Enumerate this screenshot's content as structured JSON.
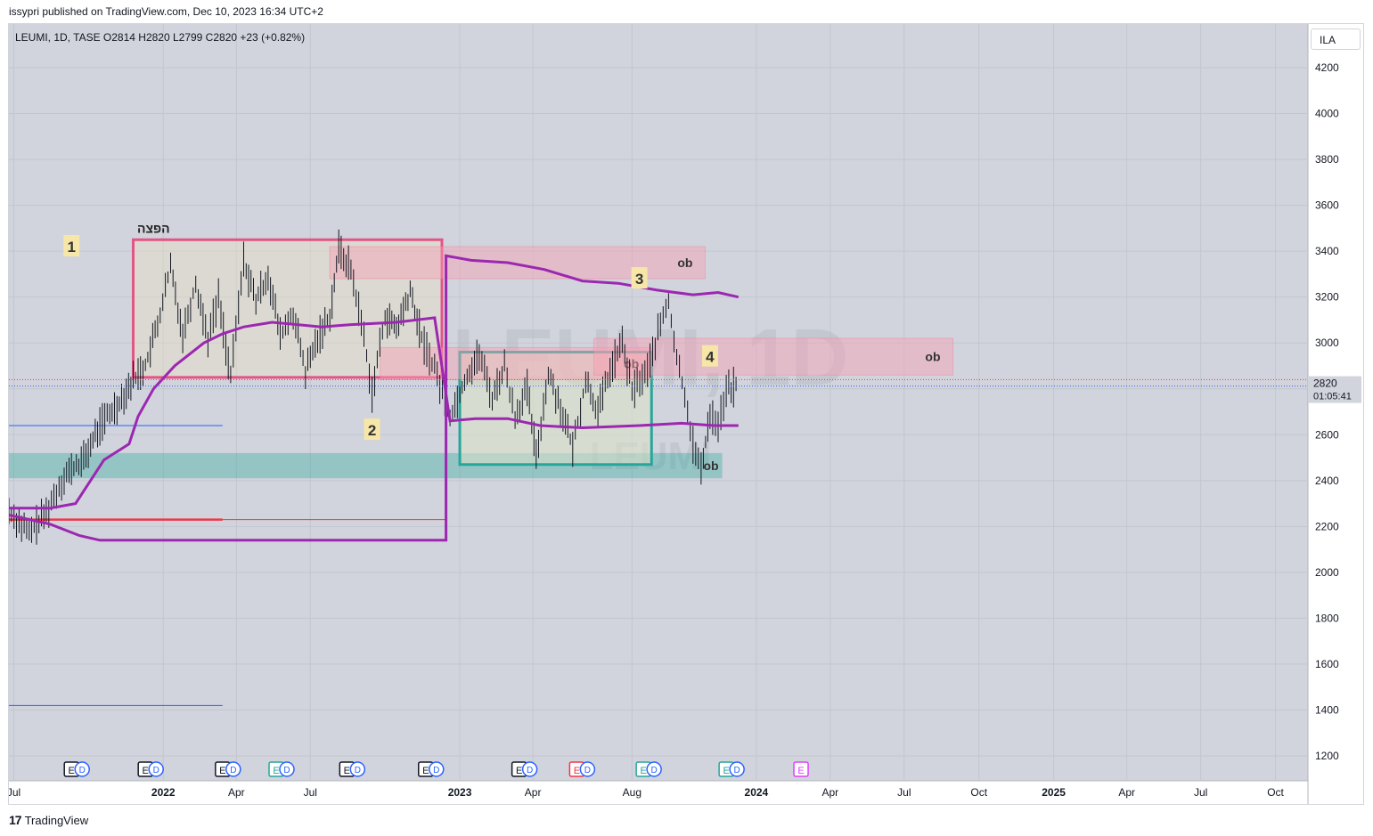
{
  "header": {
    "published": "issypri published on TradingView.com, Dec 10, 2023 16:34 UTC+2"
  },
  "legend": {
    "text": "LEUMI, 1D, TASE  O2814  H2820  L2799  C2820  +23 (+0.82%)"
  },
  "currency": "ILA",
  "watermark": {
    "symbol": "LEUMI, 1D",
    "sub": "LEUMI"
  },
  "price_label": {
    "value": "2820",
    "countdown": "01:05:41"
  },
  "footer": {
    "brand": "TradingView"
  },
  "colors": {
    "pink_box": "#e91e63",
    "ob_zone": "#f8b8c6",
    "teal": "#26a69a",
    "purple": "#9c27b0",
    "red": "#f23645",
    "blue": "#2962ff",
    "chart_bg": "#d1d4dc"
  },
  "chart_data": {
    "type": "line",
    "symbol": "LEUMI",
    "interval": "1D",
    "exchange": "TASE",
    "ohlc": {
      "open": 2814,
      "high": 2820,
      "low": 2799,
      "close": 2820,
      "change": 23,
      "change_pct": 0.82
    },
    "y_ticks": [
      1200,
      1400,
      1600,
      1800,
      2000,
      2200,
      2400,
      2600,
      2800,
      3000,
      3200,
      3400,
      3600,
      3800,
      4000,
      4200
    ],
    "ylim": [
      1100,
      4300
    ],
    "x_ticks": [
      {
        "t": "2021-07-01",
        "label": "Jul",
        "bold": false
      },
      {
        "t": "2022-01-01",
        "label": "2022",
        "bold": true
      },
      {
        "t": "2022-04-01",
        "label": "Apr",
        "bold": false
      },
      {
        "t": "2022-07-01",
        "label": "Jul",
        "bold": false
      },
      {
        "t": "2023-01-01",
        "label": "2023",
        "bold": true
      },
      {
        "t": "2023-04-01",
        "label": "Apr",
        "bold": false
      },
      {
        "t": "2023-08-01",
        "label": "Aug",
        "bold": false
      },
      {
        "t": "2024-01-01",
        "label": "2024",
        "bold": true
      },
      {
        "t": "2024-04-01",
        "label": "Apr",
        "bold": false
      },
      {
        "t": "2024-07-01",
        "label": "Jul",
        "bold": false
      },
      {
        "t": "2024-10-01",
        "label": "Oct",
        "bold": false
      },
      {
        "t": "2025-01-01",
        "label": "2025",
        "bold": true
      },
      {
        "t": "2025-04-01",
        "label": "Apr",
        "bold": false
      },
      {
        "t": "2025-07-01",
        "label": "Jul",
        "bold": false
      },
      {
        "t": "2025-10-01",
        "label": "Oct",
        "bold": false
      }
    ],
    "xlim": [
      "2021-06-25",
      "2025-11-10"
    ],
    "price_path": [
      [
        "2021-06-25",
        2270
      ],
      [
        "2021-07-20",
        2170
      ],
      [
        "2021-08-10",
        2260
      ],
      [
        "2021-09-01",
        2420
      ],
      [
        "2021-09-25",
        2490
      ],
      [
        "2021-10-15",
        2640
      ],
      [
        "2021-11-05",
        2730
      ],
      [
        "2021-11-25",
        2840
      ],
      [
        "2021-12-10",
        2900
      ],
      [
        "2021-12-25",
        3080
      ],
      [
        "2022-01-10",
        3330
      ],
      [
        "2022-01-25",
        3040
      ],
      [
        "2022-02-10",
        3260
      ],
      [
        "2022-02-25",
        3020
      ],
      [
        "2022-03-10",
        3200
      ],
      [
        "2022-03-25",
        2850
      ],
      [
        "2022-04-10",
        3360
      ],
      [
        "2022-04-25",
        3180
      ],
      [
        "2022-05-10",
        3300
      ],
      [
        "2022-05-25",
        3030
      ],
      [
        "2022-06-10",
        3130
      ],
      [
        "2022-06-25",
        2870
      ],
      [
        "2022-07-10",
        3020
      ],
      [
        "2022-07-25",
        3120
      ],
      [
        "2022-08-05",
        3410
      ],
      [
        "2022-08-20",
        3320
      ],
      [
        "2022-09-05",
        3030
      ],
      [
        "2022-09-15",
        2780
      ],
      [
        "2022-10-01",
        3120
      ],
      [
        "2022-10-15",
        3060
      ],
      [
        "2022-11-01",
        3220
      ],
      [
        "2022-11-15",
        3020
      ],
      [
        "2022-12-01",
        2890
      ],
      [
        "2022-12-20",
        2680
      ],
      [
        "2023-01-10",
        2860
      ],
      [
        "2023-01-25",
        2950
      ],
      [
        "2023-02-10",
        2760
      ],
      [
        "2023-02-25",
        2900
      ],
      [
        "2023-03-10",
        2680
      ],
      [
        "2023-03-25",
        2800
      ],
      [
        "2023-04-05",
        2500
      ],
      [
        "2023-04-20",
        2870
      ],
      [
        "2023-05-05",
        2720
      ],
      [
        "2023-05-20",
        2540
      ],
      [
        "2023-06-05",
        2840
      ],
      [
        "2023-06-20",
        2700
      ],
      [
        "2023-07-05",
        2880
      ],
      [
        "2023-07-20",
        3000
      ],
      [
        "2023-08-01",
        2790
      ],
      [
        "2023-08-20",
        2880
      ],
      [
        "2023-09-05",
        3080
      ],
      [
        "2023-09-15",
        3180
      ],
      [
        "2023-09-25",
        2930
      ],
      [
        "2023-10-05",
        2780
      ],
      [
        "2023-10-15",
        2560
      ],
      [
        "2023-10-25",
        2440
      ],
      [
        "2023-11-05",
        2700
      ],
      [
        "2023-11-15",
        2640
      ],
      [
        "2023-11-25",
        2790
      ],
      [
        "2023-12-10",
        2820
      ]
    ],
    "purple_line": [
      [
        "2021-06-25",
        2280
      ],
      [
        "2021-08-15",
        2280
      ],
      [
        "2021-09-15",
        2300
      ],
      [
        "2021-10-20",
        2490
      ],
      [
        "2021-11-20",
        2560
      ],
      [
        "2021-12-01",
        2680
      ],
      [
        "2021-12-20",
        2800
      ],
      [
        "2022-01-15",
        2900
      ],
      [
        "2022-02-20",
        3000
      ],
      [
        "2022-03-15",
        3040
      ],
      [
        "2022-04-10",
        3070
      ],
      [
        "2022-05-15",
        3090
      ],
      [
        "2022-06-15",
        3080
      ],
      [
        "2022-07-15",
        3070
      ],
      [
        "2022-08-20",
        3080
      ],
      [
        "2022-10-15",
        3090
      ],
      [
        "2022-12-01",
        3110
      ],
      [
        "2022-12-20",
        2660
      ],
      [
        "2023-01-20",
        2670
      ],
      [
        "2023-03-01",
        2670
      ],
      [
        "2023-04-10",
        2640
      ],
      [
        "2023-06-01",
        2630
      ],
      [
        "2023-08-10",
        2640
      ],
      [
        "2023-10-01",
        2650
      ],
      [
        "2023-11-10",
        2640
      ],
      [
        "2023-12-10",
        2640
      ]
    ],
    "purple_line_2": [
      [
        "2021-06-25",
        2250
      ],
      [
        "2021-08-15",
        2210
      ],
      [
        "2021-09-20",
        2160
      ],
      [
        "2021-10-15",
        2140
      ],
      [
        "2022-12-15",
        2140
      ],
      [
        "2022-12-15",
        3380
      ],
      [
        "2023-01-15",
        3360
      ],
      [
        "2023-03-01",
        3350
      ],
      [
        "2023-04-15",
        3320
      ],
      [
        "2023-06-01",
        3270
      ],
      [
        "2023-07-15",
        3260
      ],
      [
        "2023-09-01",
        3230
      ],
      [
        "2023-10-15",
        3210
      ],
      [
        "2023-11-15",
        3220
      ],
      [
        "2023-12-10",
        3200
      ]
    ],
    "pink_box": {
      "x0": "2021-11-25",
      "x1": "2022-12-10",
      "y0": 2850,
      "y1": 3450
    },
    "ob_zones": [
      {
        "x0": "2022-07-25",
        "x1": "2023-10-30",
        "y0": 3280,
        "y1": 3420,
        "label": "ob"
      },
      {
        "x0": "2022-09-25",
        "x1": "2023-08-25",
        "y0": 2840,
        "y1": 2980,
        "label": "ob"
      },
      {
        "x0": "2023-06-15",
        "x1": "2024-08-30",
        "y0": 2860,
        "y1": 3020,
        "label": "ob"
      }
    ],
    "teal_zones": [
      {
        "x0": "2021-06-25",
        "x1": "2023-11-20",
        "y0": 2410,
        "y1": 2520,
        "label": "ob"
      },
      {
        "x0": "2023-01-01",
        "x1": "2023-08-25",
        "y0": 2470,
        "y1": 2960,
        "label": ""
      }
    ],
    "red_line": {
      "x0": "2021-06-25",
      "x1": "2022-03-15",
      "y": 2230
    },
    "red_line_thin": {
      "x0": "2022-03-15",
      "x1": "2022-12-15",
      "y": 2230
    },
    "blue_lines": [
      {
        "x0": "2021-06-25",
        "x1": "2022-03-15",
        "y": 2640
      },
      {
        "x0": "2021-06-25",
        "x1": "2022-03-15",
        "y": 1420
      }
    ],
    "annotations": [
      {
        "t": "2021-09-10",
        "y": 3420,
        "text": "1"
      },
      {
        "t": "2021-12-20",
        "y": 3480,
        "text": "הפצה"
      },
      {
        "t": "2022-09-15",
        "y": 2620,
        "text": "2"
      },
      {
        "t": "2023-08-10",
        "y": 3280,
        "text": "3"
      },
      {
        "t": "2023-11-05",
        "y": 2940,
        "text": "4"
      }
    ],
    "events": [
      {
        "t": "2021-09-10",
        "kind": "ED"
      },
      {
        "t": "2021-12-10",
        "kind": "ED"
      },
      {
        "t": "2022-03-15",
        "kind": "ED"
      },
      {
        "t": "2022-05-20",
        "kind": "ED_green"
      },
      {
        "t": "2022-08-15",
        "kind": "ED"
      },
      {
        "t": "2022-11-20",
        "kind": "ED"
      },
      {
        "t": "2023-03-15",
        "kind": "ED"
      },
      {
        "t": "2023-05-25",
        "kind": "ED_red"
      },
      {
        "t": "2023-08-15",
        "kind": "ED_green"
      },
      {
        "t": "2023-11-25",
        "kind": "ED_green"
      },
      {
        "t": "2024-02-25",
        "kind": "E_magenta"
      }
    ]
  }
}
